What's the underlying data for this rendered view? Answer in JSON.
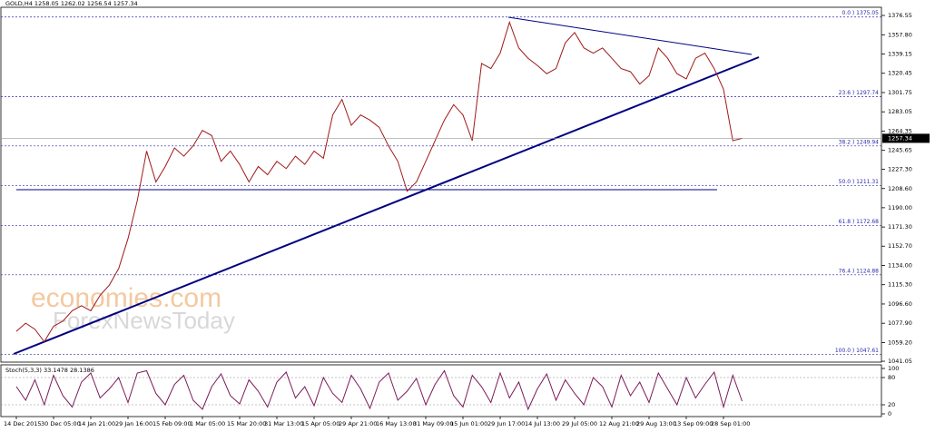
{
  "watermark": [
    "economies.com",
    "ForexNewsToday"
  ],
  "chart_data": [
    {
      "type": "line",
      "title": "GOLD,H4  1258.05 1262.02 1256.54 1257.34",
      "color": "#a01818",
      "last_price": 1257.34,
      "categories": [
        "14 Dec 2015",
        null,
        null,
        null,
        "30 Dec 05:00",
        null,
        null,
        null,
        "14 Jan 21:00",
        null,
        null,
        null,
        "29 Jan 16:00",
        null,
        null,
        null,
        "15 Feb 09:00",
        null,
        null,
        null,
        "1 Mar 05:00",
        null,
        null,
        null,
        "15 Mar 20:00",
        null,
        null,
        null,
        "31 Mar 13:00",
        null,
        null,
        null,
        "15 Apr 05:00",
        null,
        null,
        null,
        "29 Apr 21:00",
        null,
        null,
        null,
        "16 May 13:00",
        null,
        null,
        null,
        "31 May 09:00",
        null,
        null,
        null,
        "15 Jun 01:00",
        null,
        null,
        null,
        "29 Jun 17:00",
        null,
        null,
        null,
        "14 Jul 13:00",
        null,
        null,
        null,
        "29 Jul 05:00",
        null,
        null,
        null,
        "12 Aug 21:00",
        null,
        null,
        null,
        "29 Aug 13:00",
        null,
        null,
        null,
        "13 Sep 09:00",
        null,
        null,
        null,
        "28 Sep 01:00",
        null,
        null
      ],
      "values": [
        1070,
        1078,
        1072,
        1060,
        1075,
        1080,
        1090,
        1095,
        1090,
        1105,
        1115,
        1131,
        1160,
        1197,
        1245,
        1215,
        1230,
        1248,
        1240,
        1250,
        1265,
        1260,
        1235,
        1245,
        1232,
        1215,
        1230,
        1222,
        1235,
        1228,
        1240,
        1232,
        1245,
        1238,
        1280,
        1295,
        1270,
        1280,
        1275,
        1268,
        1250,
        1235,
        1206,
        1215,
        1235,
        1255,
        1275,
        1290,
        1280,
        1255,
        1330,
        1325,
        1340,
        1370,
        1345,
        1335,
        1328,
        1320,
        1325,
        1350,
        1360,
        1345,
        1340,
        1345,
        1335,
        1325,
        1322,
        1310,
        1318,
        1345,
        1335,
        1320,
        1315,
        1335,
        1340,
        1325,
        1305,
        1255,
        1257.34
      ],
      "ylim": [
        1040.2,
        1384.5
      ],
      "yticks": [
        1376.55,
        {
          "value": 1357.8,
          "label": "1357.80"
        },
        1339.15,
        1320.45,
        1301.75,
        1283.05,
        1264.35,
        1245.65,
        {
          "value": 1227.3,
          "label": "1227.30"
        },
        {
          "value": 1208.6,
          "label": "1208.60"
        },
        {
          "value": 1190,
          "label": "1190.00"
        },
        {
          "value": 1171.3,
          "label": "1171.30"
        },
        {
          "value": 1152.7,
          "label": "1152.70"
        },
        {
          "value": 1134,
          "label": "1134.00"
        },
        {
          "value": 1115.3,
          "label": "1115.30"
        },
        {
          "value": 1096.6,
          "label": "1096.60"
        },
        {
          "value": 1077.9,
          "label": "1077.90"
        },
        {
          "value": 1059.2,
          "label": "1059.20"
        },
        1041.05
      ],
      "fib_levels": [
        {
          "value": 1375.05,
          "label": "0.0 ) 1375.05"
        },
        {
          "value": 1297.74,
          "label": "23.6 ) 1297.74"
        },
        {
          "value": 1249.94,
          "label": "38.2 ) 1249.94"
        },
        {
          "value": 1211.31,
          "label": "50.0 ) 1211.31"
        },
        {
          "value": 1172.68,
          "label": "61.8 ) 1172.68"
        },
        {
          "value": 1124.88,
          "label": "76.4 ) 1124.88"
        },
        {
          "value": 1047.61,
          "label": "100.0 ) 1047.61"
        }
      ]
    },
    {
      "type": "line",
      "title": "Stoch(5,3,3) 33.1478 28.1386",
      "color": "#7a1a5a",
      "values": [
        60,
        30,
        75,
        20,
        85,
        40,
        15,
        70,
        90,
        35,
        55,
        80,
        25,
        90,
        95,
        45,
        20,
        65,
        85,
        30,
        10,
        60,
        88,
        40,
        22,
        75,
        50,
        15,
        70,
        92,
        35,
        60,
        18,
        80,
        45,
        25,
        85,
        55,
        12,
        70,
        90,
        30,
        50,
        78,
        20,
        65,
        95,
        40,
        15,
        85,
        60,
        25,
        90,
        35,
        70,
        10,
        55,
        88,
        30,
        75,
        45,
        20,
        80,
        60,
        15,
        85,
        40,
        70,
        25,
        90,
        55,
        20,
        80,
        35,
        65,
        92,
        15,
        85,
        28
      ],
      "ylim": [
        0,
        100
      ],
      "yticks": [
        0,
        20,
        80,
        100
      ],
      "levels": [
        20,
        80
      ]
    }
  ]
}
